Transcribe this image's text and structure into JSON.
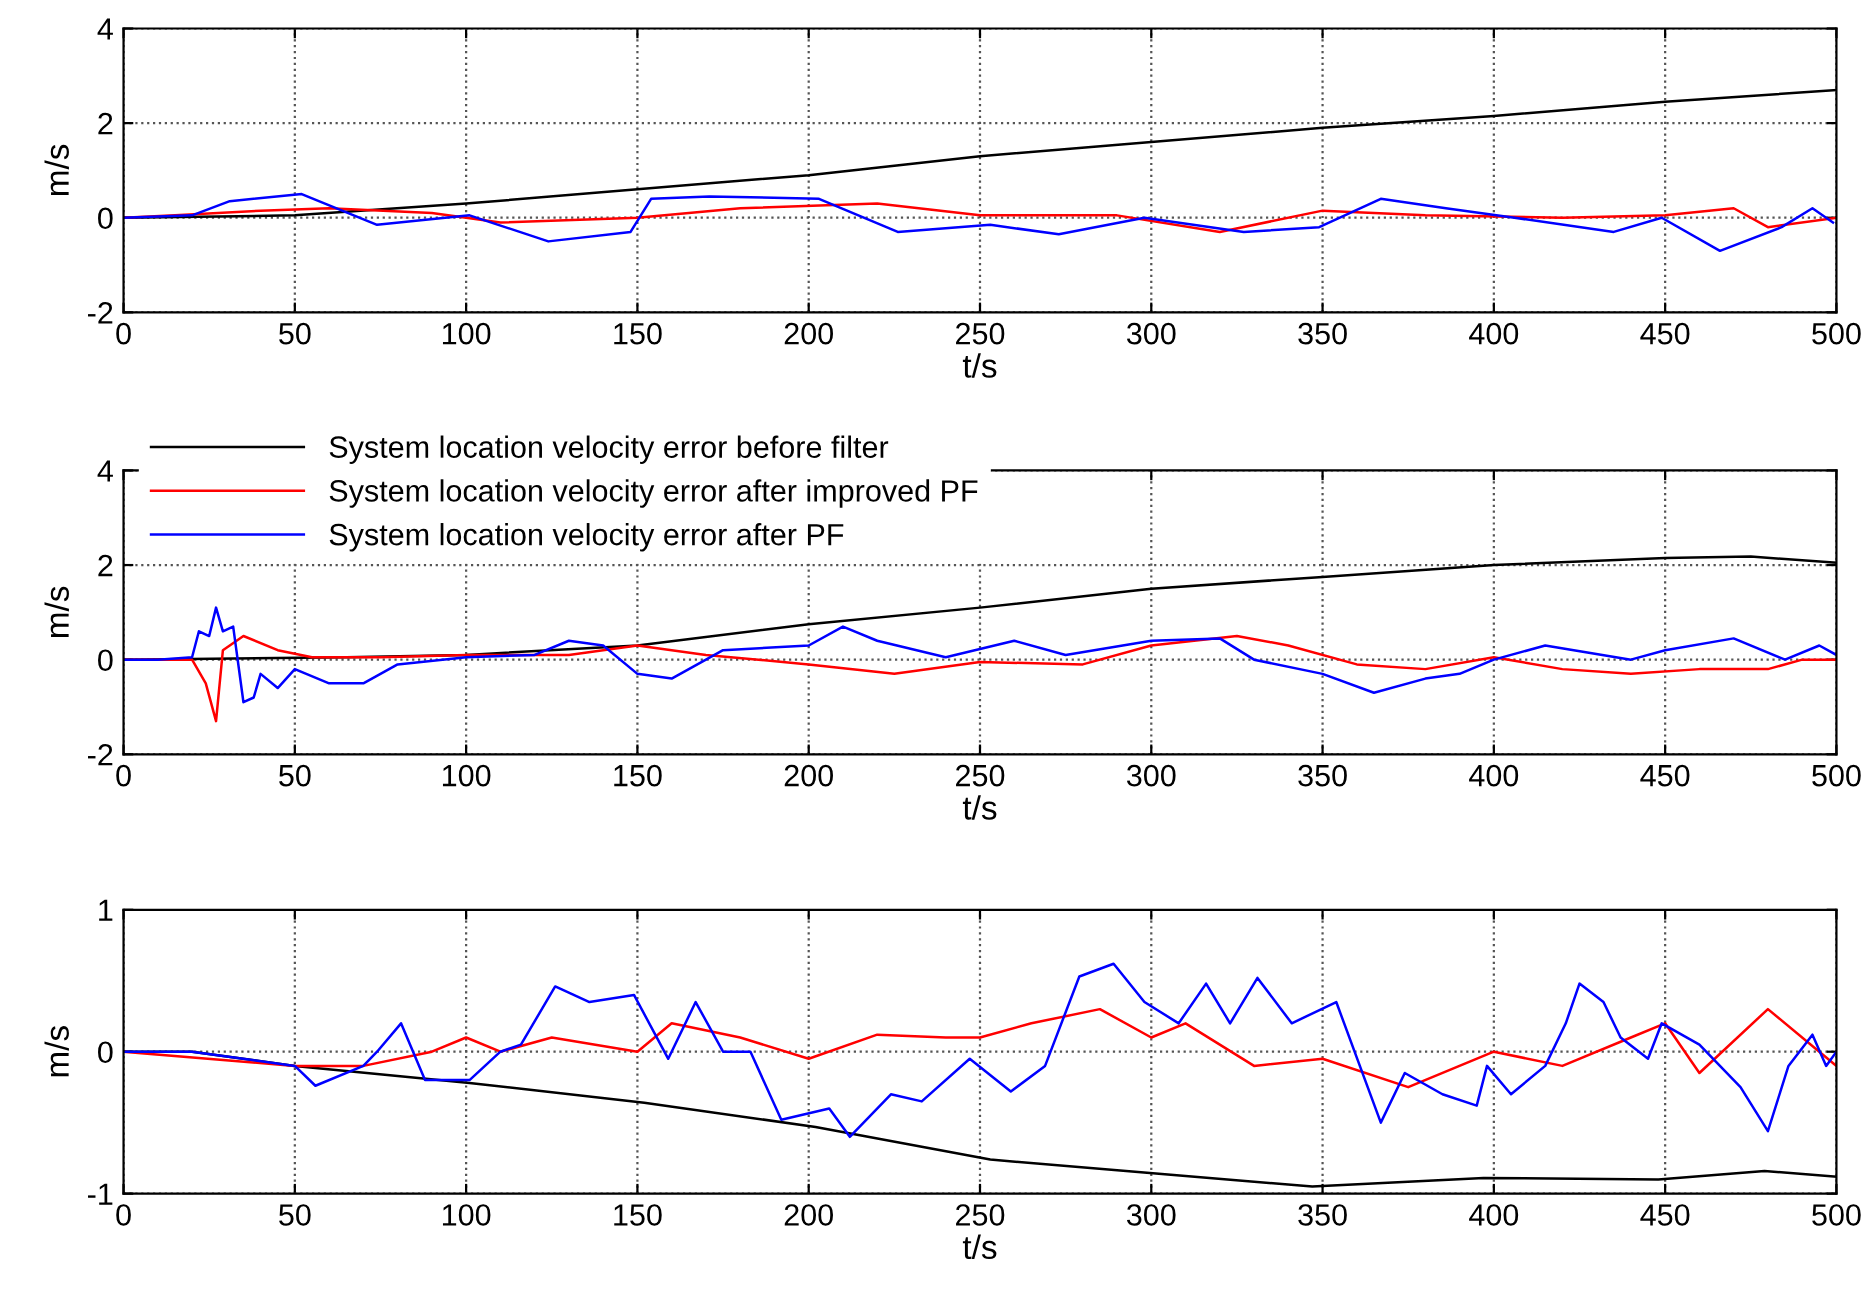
{
  "chart_data": [
    {
      "type": "line",
      "xlabel": "t/s",
      "ylabel": "m/s",
      "xlim": [
        0,
        500
      ],
      "ylim": [
        -2,
        4
      ],
      "xticks": [
        0,
        50,
        100,
        150,
        200,
        250,
        300,
        350,
        400,
        450,
        500
      ],
      "yticks": [
        -2,
        0,
        2,
        4
      ],
      "grid": true,
      "legend": false,
      "series": [
        {
          "color": "#000000",
          "x": [
            0,
            50,
            100,
            150,
            200,
            250,
            300,
            350,
            400,
            450,
            500
          ],
          "values": [
            0,
            0.05,
            0.3,
            0.6,
            0.9,
            1.3,
            1.6,
            1.9,
            2.15,
            2.45,
            2.7
          ]
        },
        {
          "color": "#ff0000",
          "x": [
            0,
            15,
            40,
            60,
            90,
            110,
            150,
            180,
            220,
            250,
            290,
            320,
            350,
            380,
            420,
            450,
            470,
            480,
            500
          ],
          "values": [
            0,
            0.05,
            0.15,
            0.2,
            0.1,
            -0.1,
            0,
            0.2,
            0.3,
            0.05,
            0.05,
            -0.3,
            0.15,
            0.05,
            0,
            0.05,
            0.2,
            -0.2,
            0
          ]
        },
        {
          "color": "#0000ff",
          "x": [
            0,
            20,
            31,
            52,
            74,
            101,
            124,
            148,
            154,
            171,
            203,
            226,
            253,
            273,
            298,
            327,
            349,
            367,
            386,
            406,
            435,
            449,
            466,
            484,
            493,
            499
          ],
          "values": [
            0,
            0.05,
            0.35,
            0.5,
            -0.15,
            0.05,
            -0.5,
            -0.3,
            0.4,
            0.45,
            0.4,
            -0.3,
            -0.15,
            -0.35,
            0,
            -0.3,
            -0.2,
            0.4,
            0.2,
            0,
            -0.3,
            0,
            -0.7,
            -0.2,
            0.2,
            -0.1
          ]
        }
      ]
    },
    {
      "type": "line",
      "xlabel": "t/s",
      "ylabel": "m/s",
      "xlim": [
        0,
        500
      ],
      "ylim": [
        -2,
        4
      ],
      "xticks": [
        0,
        50,
        100,
        150,
        200,
        250,
        300,
        350,
        400,
        450,
        500
      ],
      "yticks": [
        -2,
        0,
        2,
        4
      ],
      "grid": true,
      "legend": "top left",
      "series": [
        {
          "name": "System location velocity error before filter",
          "color": "#000000",
          "x": [
            0,
            65,
            100,
            150,
            200,
            250,
            300,
            350,
            400,
            450,
            475,
            500
          ],
          "values": [
            0,
            0.05,
            0.1,
            0.3,
            0.75,
            1.1,
            1.5,
            1.75,
            2.0,
            2.15,
            2.18,
            2.05
          ]
        },
        {
          "name": "System location velocity error after improved PF",
          "color": "#ff0000",
          "x": [
            0,
            20,
            24,
            27,
            29,
            35,
            45,
            55,
            75,
            100,
            130,
            150,
            170,
            200,
            225,
            250,
            280,
            300,
            325,
            340,
            360,
            380,
            400,
            420,
            440,
            460,
            480,
            490,
            500
          ],
          "values": [
            0,
            0,
            -0.5,
            -1.3,
            0.2,
            0.5,
            0.2,
            0.05,
            0.05,
            0.1,
            0.1,
            0.3,
            0.1,
            -0.1,
            -0.3,
            -0.05,
            -0.1,
            0.3,
            0.5,
            0.3,
            -0.1,
            -0.2,
            0.05,
            -0.2,
            -0.3,
            -0.2,
            -0.2,
            0,
            0
          ]
        },
        {
          "name": "System location velocity error after PF",
          "color": "#0000ff",
          "x": [
            0,
            10,
            20,
            22,
            25,
            27,
            29,
            32,
            35,
            38,
            40,
            45,
            50,
            60,
            70,
            80,
            100,
            120,
            130,
            140,
            150,
            160,
            175,
            200,
            210,
            220,
            240,
            260,
            275,
            300,
            320,
            330,
            350,
            365,
            380,
            390,
            400,
            415,
            440,
            450,
            470,
            485,
            495,
            500
          ],
          "values": [
            0,
            0,
            0.05,
            0.6,
            0.5,
            1.1,
            0.6,
            0.7,
            -0.9,
            -0.8,
            -0.3,
            -0.6,
            -0.2,
            -0.5,
            -0.5,
            -0.1,
            0.05,
            0.1,
            0.4,
            0.3,
            -0.3,
            -0.4,
            0.2,
            0.3,
            0.7,
            0.4,
            0.05,
            0.4,
            0.1,
            0.4,
            0.45,
            0,
            -0.3,
            -0.7,
            -0.4,
            -0.3,
            0,
            0.3,
            0,
            0.2,
            0.45,
            0,
            0.3,
            0.1
          ]
        }
      ]
    },
    {
      "type": "line",
      "xlabel": "t/s",
      "ylabel": "m/s",
      "xlim": [
        0,
        500
      ],
      "ylim": [
        -1,
        1
      ],
      "xticks": [
        0,
        50,
        100,
        150,
        200,
        250,
        300,
        350,
        400,
        450,
        500
      ],
      "yticks": [
        -1,
        0,
        1
      ],
      "grid": true,
      "legend": false,
      "series": [
        {
          "color": "#000000",
          "x": [
            0,
            20,
            50,
            101,
            152,
            202,
            253,
            297,
            347,
            397,
            448,
            479,
            500
          ],
          "values": [
            0,
            0,
            -0.1,
            -0.22,
            -0.36,
            -0.53,
            -0.76,
            -0.85,
            -0.95,
            -0.89,
            -0.9,
            -0.84,
            -0.88
          ]
        },
        {
          "color": "#ff0000",
          "x": [
            0,
            50,
            70,
            90,
            100,
            110,
            125,
            150,
            160,
            180,
            200,
            220,
            240,
            250,
            265,
            285,
            300,
            310,
            330,
            350,
            375,
            400,
            420,
            440,
            450,
            460,
            480,
            495,
            500
          ],
          "values": [
            0,
            -0.1,
            -0.1,
            0,
            0.1,
            0,
            0.1,
            0,
            0.2,
            0.1,
            -0.05,
            0.12,
            0.1,
            0.1,
            0.2,
            0.3,
            0.1,
            0.2,
            -0.1,
            -0.05,
            -0.25,
            0,
            -0.1,
            0.1,
            0.2,
            -0.15,
            0.3,
            0,
            -0.1
          ]
        },
        {
          "color": "#0000ff",
          "x": [
            0,
            20,
            50,
            56,
            70,
            74,
            81,
            88,
            101,
            110,
            116,
            126,
            136,
            149,
            159,
            167,
            175,
            183,
            192,
            206,
            212,
            224,
            233,
            247,
            259,
            269,
            279,
            289,
            298,
            308,
            316,
            323,
            331,
            341,
            354,
            367,
            374,
            385,
            395,
            398,
            405,
            415,
            421,
            425,
            432,
            437,
            445,
            449,
            460,
            472,
            480,
            486,
            493,
            497,
            500
          ],
          "values": [
            0,
            0,
            -0.1,
            -0.24,
            -0.1,
            0,
            0.2,
            -0.2,
            -0.2,
            0,
            0.05,
            0.46,
            0.35,
            0.4,
            -0.05,
            0.35,
            0,
            0,
            -0.48,
            -0.4,
            -0.6,
            -0.3,
            -0.35,
            -0.05,
            -0.28,
            -0.1,
            0.53,
            0.62,
            0.35,
            0.2,
            0.48,
            0.2,
            0.52,
            0.2,
            0.35,
            -0.5,
            -0.15,
            -0.3,
            -0.38,
            -0.1,
            -0.3,
            -0.1,
            0.2,
            0.48,
            0.35,
            0.1,
            -0.05,
            0.2,
            0.05,
            -0.25,
            -0.56,
            -0.1,
            0.12,
            -0.1,
            0
          ]
        }
      ]
    }
  ]
}
